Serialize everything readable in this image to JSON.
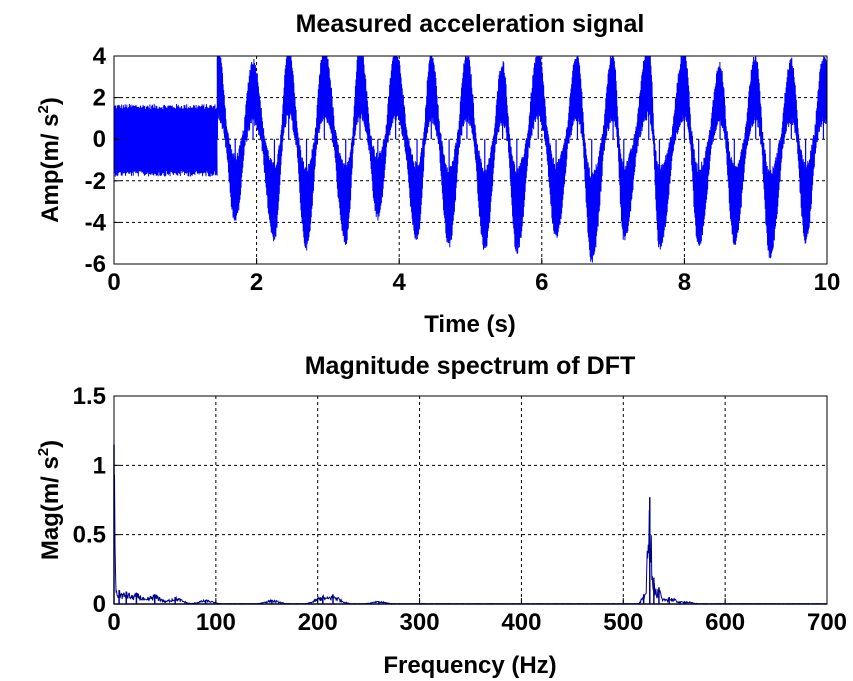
{
  "chart_data": [
    {
      "type": "line",
      "title": "Measured acceleration signal",
      "xlabel": "Time (s)",
      "ylabel": {
        "main": "Amp(m/ s",
        "sup": "2",
        "close": ")"
      },
      "xlim": [
        0,
        10
      ],
      "ylim": [
        -6,
        4
      ],
      "xticks": [
        0,
        2,
        4,
        6,
        8,
        10
      ],
      "xtick_labels": [
        "0",
        "2",
        "4",
        "6",
        "8",
        "10"
      ],
      "yticks": [
        -6,
        -4,
        -2,
        0,
        2,
        4
      ],
      "ytick_labels": [
        "-6",
        "-4",
        "-2",
        "0",
        "2",
        "4"
      ],
      "grid": true,
      "line_color": "#0000ff",
      "series": [
        {
          "segments": [
            {
              "t_start": 0.0,
              "t_end": 1.45,
              "upper": 1.7,
              "lower": -1.8
            },
            {
              "t_start": 1.45,
              "t_end": 10.0,
              "oscillation_period_s": 0.52,
              "peak_max": 3.9,
              "trough_min": -5.3
            }
          ],
          "peaks": [
            [
              1.45,
              3.9
            ],
            [
              1.95,
              3.2
            ],
            [
              2.45,
              3.8
            ],
            [
              2.95,
              3.8
            ],
            [
              3.45,
              3.9
            ],
            [
              3.95,
              3.7
            ],
            [
              4.45,
              3.5
            ],
            [
              4.95,
              3.5
            ],
            [
              5.45,
              3.1
            ],
            [
              5.95,
              3.6
            ],
            [
              6.5,
              3.5
            ],
            [
              7.0,
              3.6
            ],
            [
              7.5,
              3.9
            ],
            [
              8.0,
              3.6
            ],
            [
              8.5,
              3.0
            ],
            [
              9.0,
              3.4
            ],
            [
              9.5,
              3.2
            ],
            [
              9.95,
              3.3
            ]
          ],
          "troughs": [
            [
              1.7,
              -3.3
            ],
            [
              2.25,
              -4.2
            ],
            [
              2.7,
              -4.6
            ],
            [
              3.25,
              -4.4
            ],
            [
              3.7,
              -3.2
            ],
            [
              4.25,
              -4.2
            ],
            [
              4.7,
              -4.5
            ],
            [
              5.2,
              -4.7
            ],
            [
              5.65,
              -4.8
            ],
            [
              6.2,
              -4.1
            ],
            [
              6.7,
              -5.3
            ],
            [
              7.15,
              -4.2
            ],
            [
              7.65,
              -4.6
            ],
            [
              8.2,
              -4.5
            ],
            [
              8.7,
              -4.4
            ],
            [
              9.2,
              -5.0
            ],
            [
              9.7,
              -4.3
            ]
          ]
        }
      ]
    },
    {
      "type": "line",
      "title": "Magnitude spectrum of DFT",
      "xlabel": "Frequency (Hz)",
      "ylabel": {
        "main": "Mag(m/ s",
        "sup": "2",
        "close": ")"
      },
      "xlim": [
        0,
        700
      ],
      "ylim": [
        0,
        1.5
      ],
      "xticks": [
        0,
        100,
        200,
        300,
        400,
        500,
        600,
        700
      ],
      "xtick_labels": [
        "0",
        "100",
        "200",
        "300",
        "400",
        "500",
        "600",
        "700"
      ],
      "yticks": [
        0,
        0.5,
        1,
        1.5
      ],
      "ytick_labels": [
        "0",
        "0.5",
        "1",
        "1.5"
      ],
      "grid": true,
      "line_color": "#00008b",
      "series": [
        {
          "peaks": [
            {
              "x": 0,
              "y": 1.15
            },
            {
              "x": 5,
              "y": 0.1
            },
            {
              "x": 12,
              "y": 0.09
            },
            {
              "x": 22,
              "y": 0.08
            },
            {
              "x": 40,
              "y": 0.07
            },
            {
              "x": 60,
              "y": 0.05
            },
            {
              "x": 90,
              "y": 0.03
            },
            {
              "x": 155,
              "y": 0.03
            },
            {
              "x": 205,
              "y": 0.06
            },
            {
              "x": 215,
              "y": 0.07
            },
            {
              "x": 260,
              "y": 0.02
            },
            {
              "x": 520,
              "y": 0.07
            },
            {
              "x": 526,
              "y": 0.77
            },
            {
              "x": 530,
              "y": 0.19
            },
            {
              "x": 535,
              "y": 0.12
            },
            {
              "x": 545,
              "y": 0.05
            },
            {
              "x": 560,
              "y": 0.02
            }
          ]
        }
      ]
    }
  ]
}
